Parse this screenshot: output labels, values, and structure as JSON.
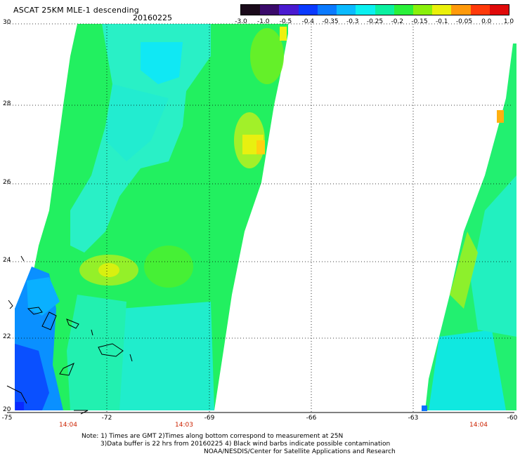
{
  "header": {
    "title": "ASCAT 25KM MLE-1 descending",
    "date": "20160225"
  },
  "colorbar": {
    "labels": [
      "-3.0",
      "-1.0",
      "-0.5",
      "-0.4",
      "-0.35",
      "-0.3",
      "-0.25",
      "-0.2",
      "-0.15",
      "-0.1",
      "-0.05",
      "0.0",
      "1.0"
    ],
    "colors": [
      "#1a0a1a",
      "#3a0a6a",
      "#4a1ad0",
      "#0a3aff",
      "#0a7aff",
      "#0abaff",
      "#0af0f0",
      "#0af0a0",
      "#2af03a",
      "#8af00a",
      "#eaf00a",
      "#ff9a0a",
      "#ff3a0a",
      "#e00a0a"
    ]
  },
  "axes": {
    "lat_labels": [
      "30",
      "28",
      "26",
      "24",
      "22",
      "20"
    ],
    "lon_labels": [
      "-75",
      "-72",
      "-69",
      "-66",
      "-63",
      "-60"
    ]
  },
  "times": [
    "14:04",
    "14:03",
    "14:04"
  ],
  "notes": [
    "Note: 1) Times are GMT 2)Times along bottom correspond to measurement at 25N",
    "3)Data buffer is 22 hrs from 20160225 4) Black wind barbs indicate possible contamination",
    "NOAA/NESDIS/Center for Satellite Applications and Research"
  ]
}
